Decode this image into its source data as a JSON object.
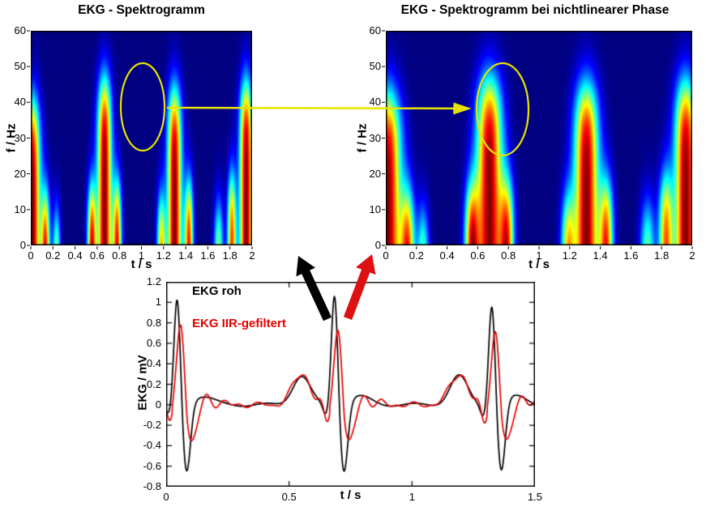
{
  "page": {
    "background": "#ffffff"
  },
  "chart_data": [
    {
      "id": "spectrogram_left",
      "type": "heatmap",
      "title": "EKG - Spektrogramm",
      "xlabel": "t / s",
      "ylabel": "f / Hz",
      "xlim": [
        0,
        2
      ],
      "ylim": [
        0,
        60
      ],
      "xticks": [
        [
          0,
          "0"
        ],
        [
          0.2,
          "0.2"
        ],
        [
          0.4,
          "0.4"
        ],
        [
          0.6,
          "0.6"
        ],
        [
          0.8,
          "0.8"
        ],
        [
          1,
          "1"
        ],
        [
          1.2,
          "1.2"
        ],
        [
          1.4,
          "1.4"
        ],
        [
          1.6,
          "1.6"
        ],
        [
          1.8,
          "1.8"
        ],
        [
          2,
          "2"
        ]
      ],
      "yticks": [
        [
          0,
          "0"
        ],
        [
          10,
          "10"
        ],
        [
          20,
          "20"
        ],
        [
          30,
          "30"
        ],
        [
          40,
          "40"
        ],
        [
          50,
          "50"
        ],
        [
          60,
          "60"
        ]
      ],
      "colormap": "jet",
      "bursts": [
        {
          "t": 0.01,
          "w": 0.05,
          "fc": 38,
          "a": 1.0
        },
        {
          "t": 0.13,
          "w": 0.028,
          "fc": 12,
          "a": 0.9
        },
        {
          "t": 0.23,
          "w": 0.025,
          "fc": 7,
          "a": 0.6
        },
        {
          "t": 0.55,
          "w": 0.028,
          "fc": 14,
          "a": 0.95
        },
        {
          "t": 0.665,
          "w": 0.045,
          "fc": 44,
          "a": 1.0
        },
        {
          "t": 0.78,
          "w": 0.028,
          "fc": 15,
          "a": 0.9
        },
        {
          "t": 1.18,
          "w": 0.028,
          "fc": 11,
          "a": 0.75
        },
        {
          "t": 1.3,
          "w": 0.045,
          "fc": 41,
          "a": 1.0
        },
        {
          "t": 1.43,
          "w": 0.028,
          "fc": 15,
          "a": 0.9
        },
        {
          "t": 1.7,
          "w": 0.03,
          "fc": 9,
          "a": 0.6
        },
        {
          "t": 1.82,
          "w": 0.028,
          "fc": 17,
          "a": 0.85
        },
        {
          "t": 1.95,
          "w": 0.042,
          "fc": 43,
          "a": 1.0
        }
      ]
    },
    {
      "id": "spectrogram_right",
      "type": "heatmap",
      "title": "EKG - Spektrogramm  bei nichtlinearer Phase",
      "xlabel": "t / s",
      "ylabel": "f / Hz",
      "xlim": [
        0,
        2
      ],
      "ylim": [
        0,
        60
      ],
      "xticks": [
        [
          0,
          "0"
        ],
        [
          0.2,
          "0.2"
        ],
        [
          0.4,
          "0.4"
        ],
        [
          0.6,
          "0.6"
        ],
        [
          0.8,
          "0.8"
        ],
        [
          1,
          "1"
        ],
        [
          1.2,
          "1.2"
        ],
        [
          1.4,
          "1.4"
        ],
        [
          1.6,
          "1.6"
        ],
        [
          1.8,
          "1.8"
        ],
        [
          2,
          "2"
        ]
      ],
      "yticks": [
        [
          0,
          "0"
        ],
        [
          10,
          "10"
        ],
        [
          20,
          "20"
        ],
        [
          30,
          "30"
        ],
        [
          40,
          "40"
        ],
        [
          50,
          "50"
        ],
        [
          60,
          "60"
        ]
      ],
      "colormap": "jet",
      "bursts": [
        {
          "t": 0.01,
          "w": 0.06,
          "fc": 40,
          "a": 1.0
        },
        {
          "t": 0.14,
          "w": 0.032,
          "fc": 12,
          "a": 0.85
        },
        {
          "t": 0.24,
          "w": 0.028,
          "fc": 7,
          "a": 0.55
        },
        {
          "t": 0.56,
          "w": 0.032,
          "fc": 14,
          "a": 0.9
        },
        {
          "t": 0.675,
          "w": 0.058,
          "fc": 44,
          "a": 1.0
        },
        {
          "t": 0.79,
          "w": 0.032,
          "fc": 15,
          "a": 0.85
        },
        {
          "t": 1.19,
          "w": 0.032,
          "fc": 11,
          "a": 0.7
        },
        {
          "t": 1.31,
          "w": 0.055,
          "fc": 42,
          "a": 1.0
        },
        {
          "t": 1.44,
          "w": 0.032,
          "fc": 15,
          "a": 0.85
        },
        {
          "t": 1.71,
          "w": 0.034,
          "fc": 9,
          "a": 0.55
        },
        {
          "t": 1.83,
          "w": 0.032,
          "fc": 17,
          "a": 0.8
        },
        {
          "t": 1.96,
          "w": 0.05,
          "fc": 43,
          "a": 1.0
        }
      ]
    },
    {
      "id": "ecg",
      "type": "line",
      "title": "",
      "xlabel": "t / s",
      "ylabel": "EKG / mV",
      "xlim": [
        0,
        1.5
      ],
      "ylim": [
        -0.8,
        1.2
      ],
      "xticks": [
        [
          0,
          "0"
        ],
        [
          0.5,
          "0.5"
        ],
        [
          1,
          "1"
        ],
        [
          1.5,
          "1.5"
        ]
      ],
      "yticks": [
        [
          -0.8,
          "-0.8"
        ],
        [
          -0.6,
          "-0.6"
        ],
        [
          -0.4,
          "-0.4"
        ],
        [
          -0.2,
          "-0.2"
        ],
        [
          0,
          "0"
        ],
        [
          0.2,
          "0.2"
        ],
        [
          0.4,
          "0.4"
        ],
        [
          0.6,
          "0.6"
        ],
        [
          0.8,
          "0.8"
        ],
        [
          1,
          "1"
        ],
        [
          1.2,
          "1.2"
        ]
      ],
      "series": [
        {
          "name": "EKG roh",
          "color": "#000000",
          "beats": [
            0.045,
            0.685,
            1.325
          ],
          "r_amps": [
            1.05,
            1.1,
            1.0
          ],
          "r_delay": 0,
          "r_width": 0.013,
          "q_amp": 0.12,
          "s_amp": 0.68,
          "s_offset": 0.038,
          "s_width": 0.016,
          "p_amp": 0.28,
          "t_amp": 0.08,
          "ring_amp": 0,
          "ring_freq": 0,
          "ring_decay": 0.1,
          "baseline_amp": 0.015,
          "baseline_freq": 5
        },
        {
          "name": "EKG IIR-gefiltert",
          "color": "#e60000",
          "beats": [
            0.045,
            0.685,
            1.325
          ],
          "r_amps": [
            0.85,
            0.8,
            0.78
          ],
          "r_delay": 0.015,
          "r_width": 0.016,
          "q_amp": 0.18,
          "s_amp": 0.52,
          "s_offset": 0.055,
          "s_width": 0.02,
          "p_amp": 0.3,
          "t_amp": 0.06,
          "ring_amp": 0.12,
          "ring_freq": 15,
          "ring_decay": 0.1,
          "baseline_amp": 0.02,
          "baseline_freq": 8
        }
      ]
    }
  ],
  "annotations": {
    "ellipse_color": "#e8e400",
    "yellow_arrow_color": "#e8e400",
    "black_arrow_color": "#000000",
    "red_arrow_color": "#dd1111"
  }
}
